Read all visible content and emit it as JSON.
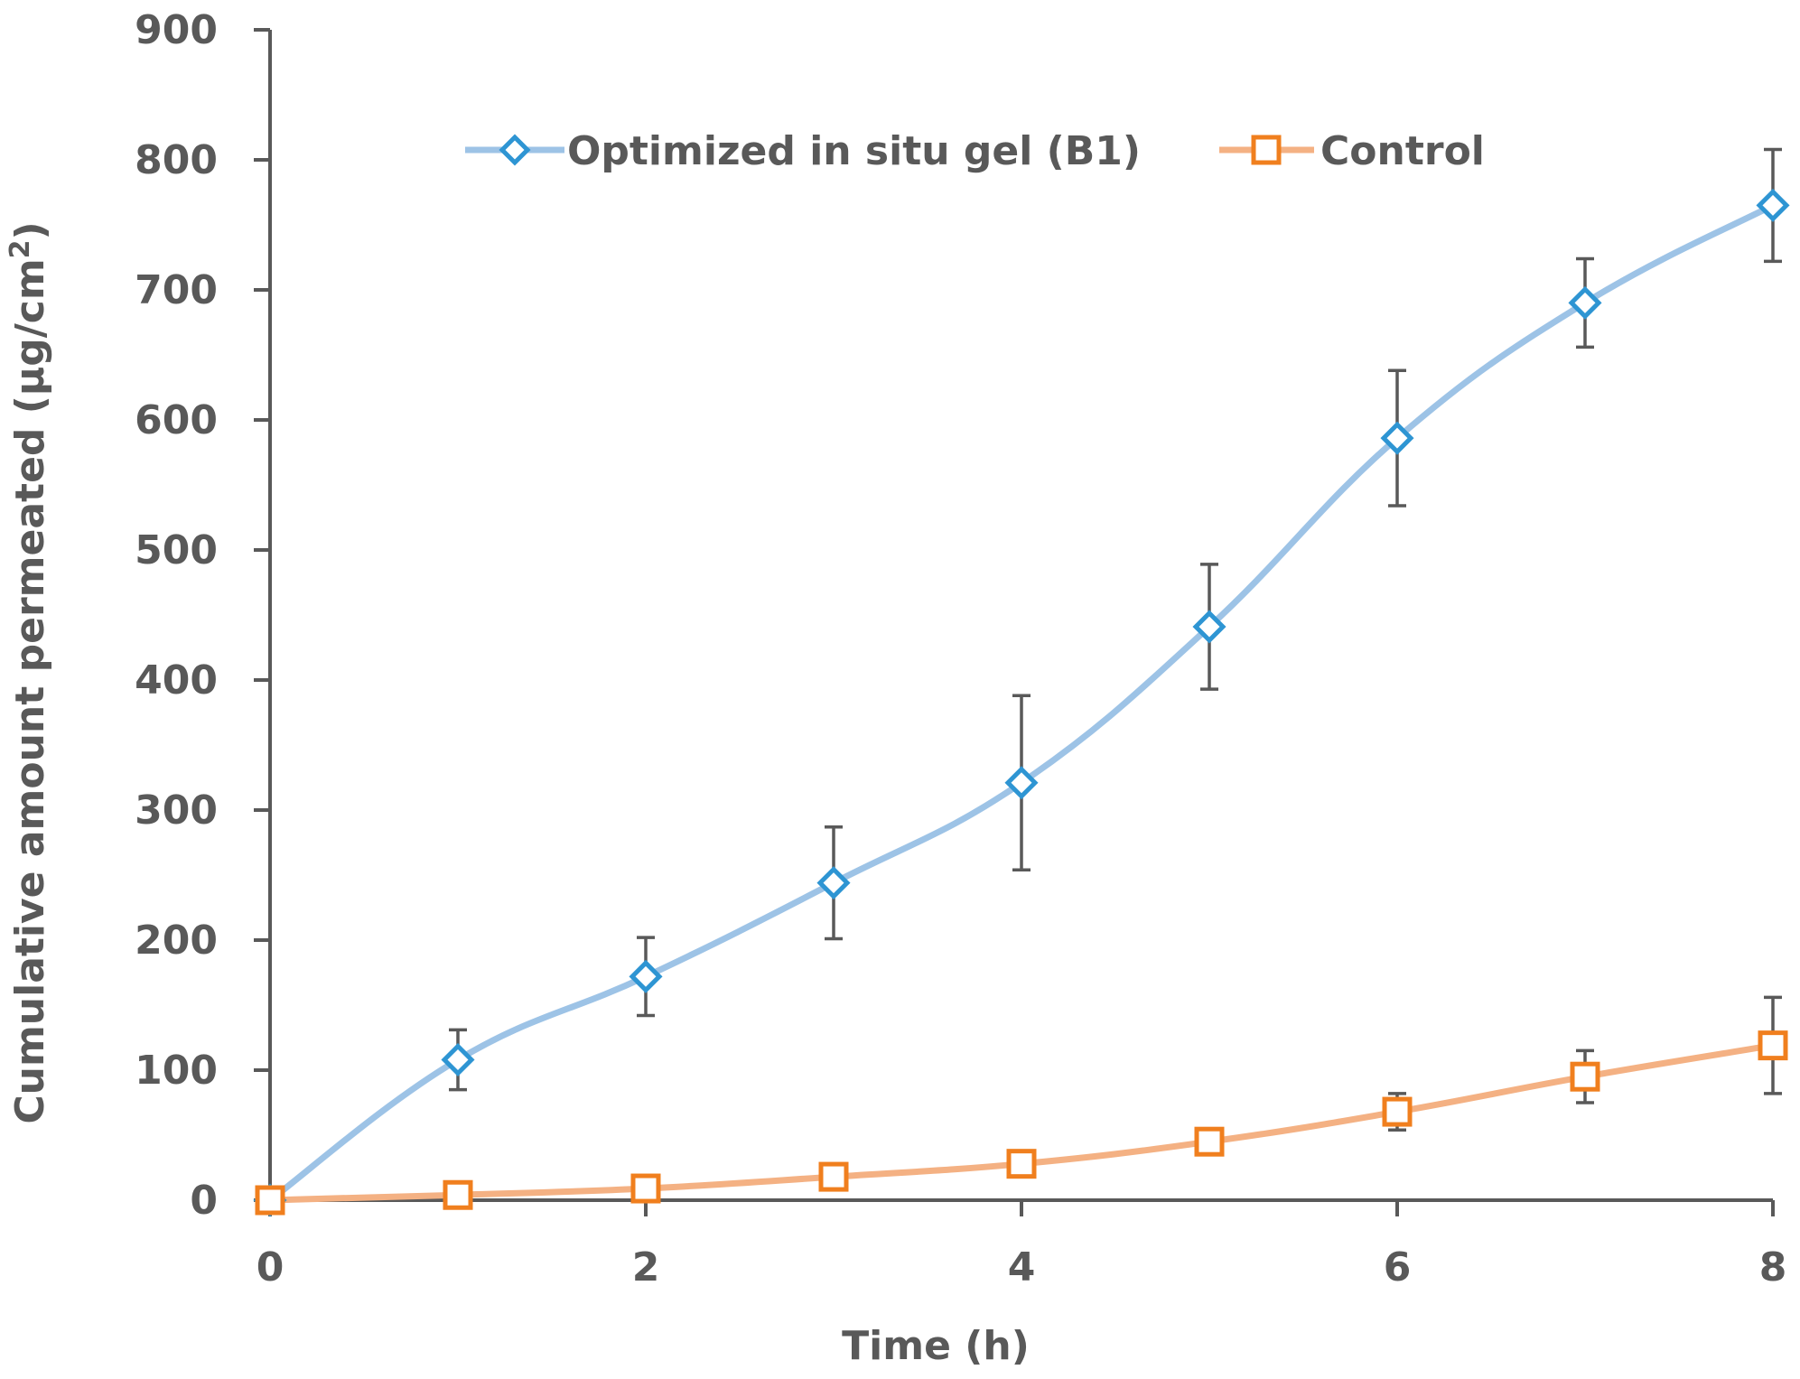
{
  "chart_data": {
    "type": "line",
    "title": "",
    "xlabel": "Time (h)",
    "ylabel": "Cumulative amount permeated (µg/cm²)",
    "ylabel_main": "Cumulative amount permeated (µg/cm",
    "ylabel_sup": "2",
    "ylabel_close": ")",
    "xlim": [
      0,
      8
    ],
    "ylim": [
      0,
      900
    ],
    "xticks": [
      "0",
      "2",
      "4",
      "6",
      "8"
    ],
    "yticks": [
      "0",
      "100",
      "200",
      "300",
      "400",
      "500",
      "600",
      "700",
      "800",
      "900"
    ],
    "grid": false,
    "legend_position": "top",
    "series": [
      {
        "name": "Optimized in situ gel (B1)",
        "marker": "diamond",
        "line_color": "#9DC3E6",
        "marker_color": "#2E95D3",
        "x": [
          0,
          1,
          2,
          3,
          4,
          5,
          6,
          7,
          8
        ],
        "values": [
          0,
          108,
          172,
          244,
          321,
          441,
          586,
          690,
          765
        ],
        "errors": [
          0,
          23,
          30,
          43,
          67,
          48,
          52,
          34,
          43
        ]
      },
      {
        "name": "Control",
        "marker": "square",
        "line_color": "#F4B183",
        "marker_color": "#F07F1E",
        "x": [
          0,
          1,
          2,
          3,
          4,
          5,
          6,
          7,
          8
        ],
        "values": [
          0,
          4,
          9,
          18,
          28,
          45,
          68,
          95,
          119
        ],
        "errors": [
          0,
          0,
          0,
          0,
          0,
          0,
          14,
          20,
          37
        ]
      }
    ]
  }
}
